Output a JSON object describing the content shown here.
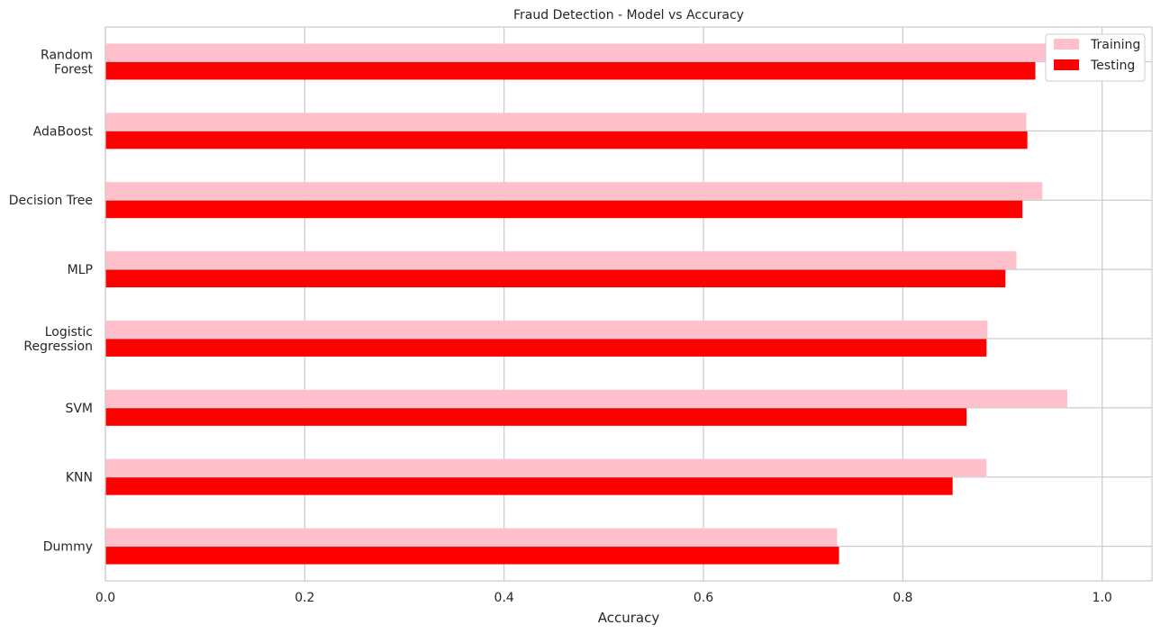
{
  "chart_data": {
    "type": "bar",
    "orientation": "horizontal",
    "title": "Fraud Detection - Model vs Accuracy",
    "xlabel": "Accuracy",
    "ylabel": "",
    "xlim": [
      0,
      1.05
    ],
    "x_ticks": [
      "0.0",
      "0.2",
      "0.4",
      "0.6",
      "0.8",
      "1.0"
    ],
    "x_tick_values": [
      0,
      0.2,
      0.4,
      0.6,
      0.8,
      1.0
    ],
    "grid": true,
    "legend_position": "top-right",
    "categories": [
      [
        "Random",
        "Forest"
      ],
      [
        "AdaBoost"
      ],
      [
        "Decision Tree"
      ],
      [
        "MLP"
      ],
      [
        "Logistic",
        "Regression"
      ],
      [
        "SVM"
      ],
      [
        "KNN"
      ],
      [
        "Dummy"
      ]
    ],
    "series": [
      {
        "name": "Training",
        "color": "#ffc0cb",
        "values": [
          1.0,
          0.924,
          0.94,
          0.914,
          0.885,
          0.965,
          0.884,
          0.734
        ]
      },
      {
        "name": "Testing",
        "color": "#ff0000",
        "values": [
          0.933,
          0.925,
          0.92,
          0.903,
          0.884,
          0.864,
          0.85,
          0.736
        ]
      }
    ]
  }
}
